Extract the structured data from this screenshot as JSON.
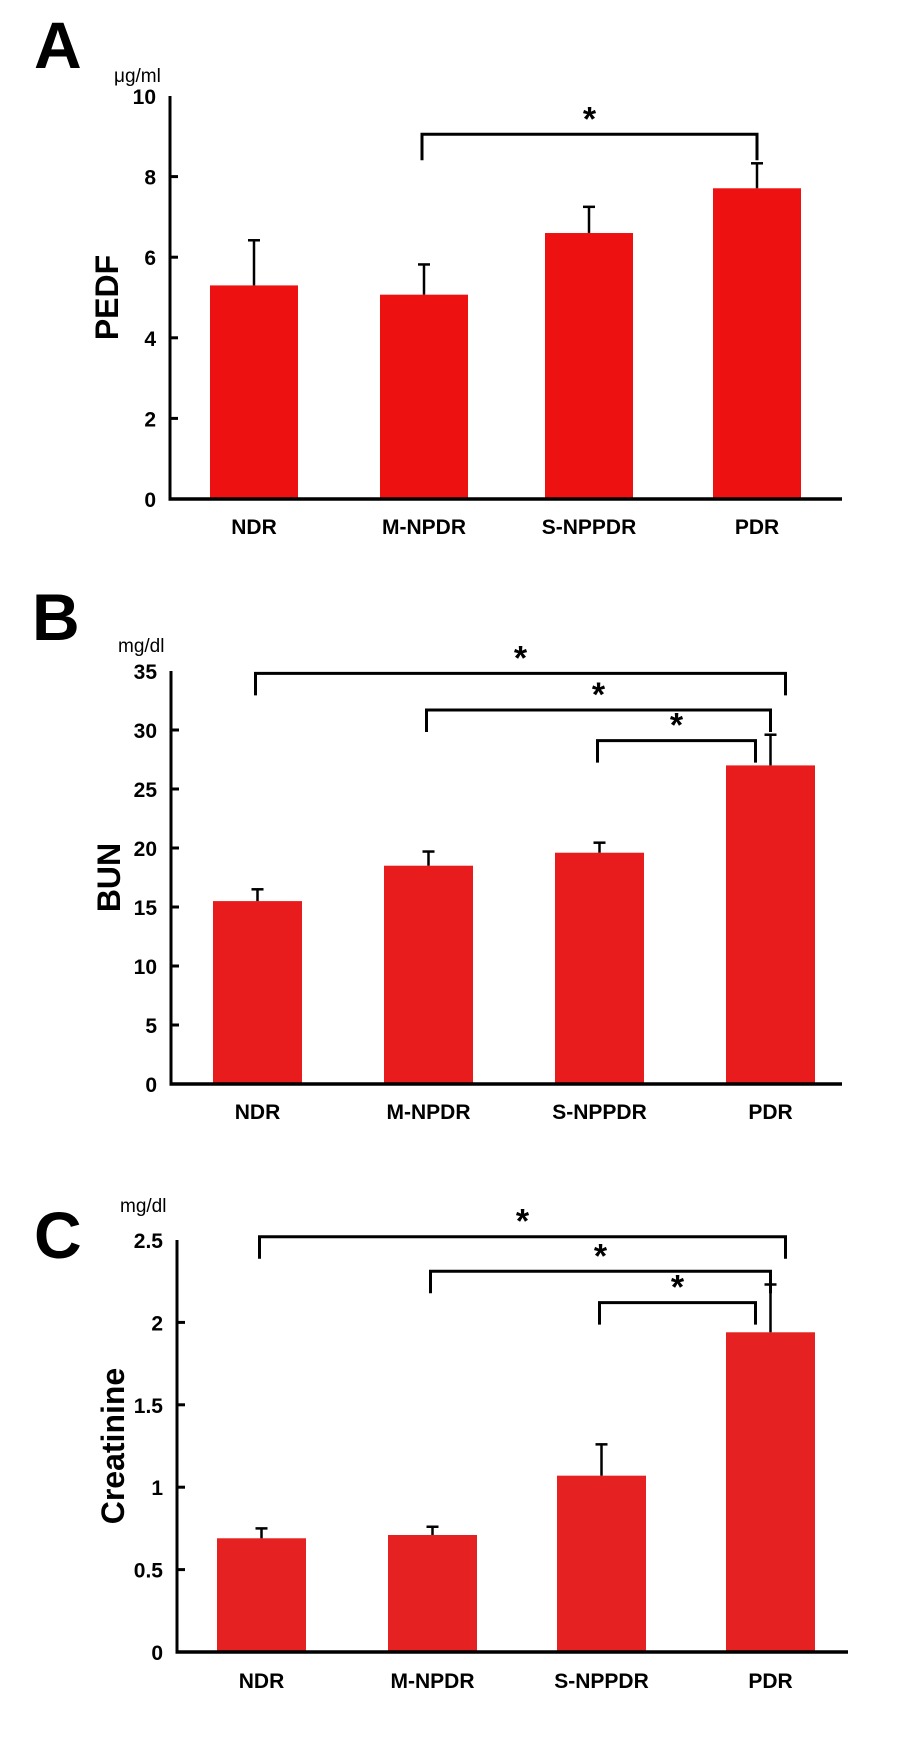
{
  "chart_data": [
    {
      "type": "bar",
      "panel": "A",
      "title": "",
      "unit": "μg/ml",
      "xlabel": "",
      "ylabel": "PEDF",
      "ylim": [
        0,
        10
      ],
      "yticks": [
        0,
        2,
        4,
        6,
        8,
        10
      ],
      "categories": [
        "NDR",
        "M-NPDR",
        "S-NPPDR",
        "PDR"
      ],
      "values": [
        5.3,
        5.07,
        6.6,
        7.71
      ],
      "error_upper": [
        6.42,
        5.82,
        7.25,
        8.33
      ],
      "bar_color": "#ee1111",
      "significance": [
        {
          "from": "M-NPDR",
          "to": "PDR",
          "label": "*",
          "level": 9.05
        }
      ]
    },
    {
      "type": "bar",
      "panel": "B",
      "title": "",
      "unit": "mg/dl",
      "xlabel": "",
      "ylabel": "BUN",
      "ylim": [
        0,
        35
      ],
      "yticks": [
        0,
        5,
        10,
        15,
        20,
        25,
        30,
        35
      ],
      "categories": [
        "NDR",
        "M-NPDR",
        "S-NPPDR",
        "PDR"
      ],
      "values": [
        15.5,
        18.5,
        19.6,
        27.0
      ],
      "error_upper": [
        16.5,
        19.7,
        20.45,
        29.6
      ],
      "bar_color": "#e81c1c",
      "significance": [
        {
          "from": "NDR",
          "to": "PDR",
          "label": "*",
          "level": 34.8
        },
        {
          "from": "M-NPDR",
          "to": "PDR",
          "label": "*",
          "level": 31.7
        },
        {
          "from": "S-NPPDR",
          "to": "PDR",
          "label": "*",
          "level": 29.1
        }
      ]
    },
    {
      "type": "bar",
      "panel": "C",
      "title": "",
      "unit": "mg/dl",
      "xlabel": "",
      "ylabel": "Creatinine",
      "ylim": [
        0,
        2.5
      ],
      "yticks": [
        0,
        0.5,
        1,
        1.5,
        2,
        2.5
      ],
      "categories": [
        "NDR",
        "M-NPDR",
        "S-NPPDR",
        "PDR"
      ],
      "values": [
        0.69,
        0.71,
        1.07,
        1.94
      ],
      "error_upper": [
        0.75,
        0.76,
        1.26,
        2.23
      ],
      "bar_color": "#e52121",
      "significance": [
        {
          "from": "NDR",
          "to": "PDR",
          "label": "*",
          "level": 2.52
        },
        {
          "from": "M-NPDR",
          "to": "PDR",
          "label": "*",
          "level": 2.31
        },
        {
          "from": "S-NPPDR",
          "to": "PDR",
          "label": "*",
          "level": 2.12
        }
      ]
    }
  ]
}
